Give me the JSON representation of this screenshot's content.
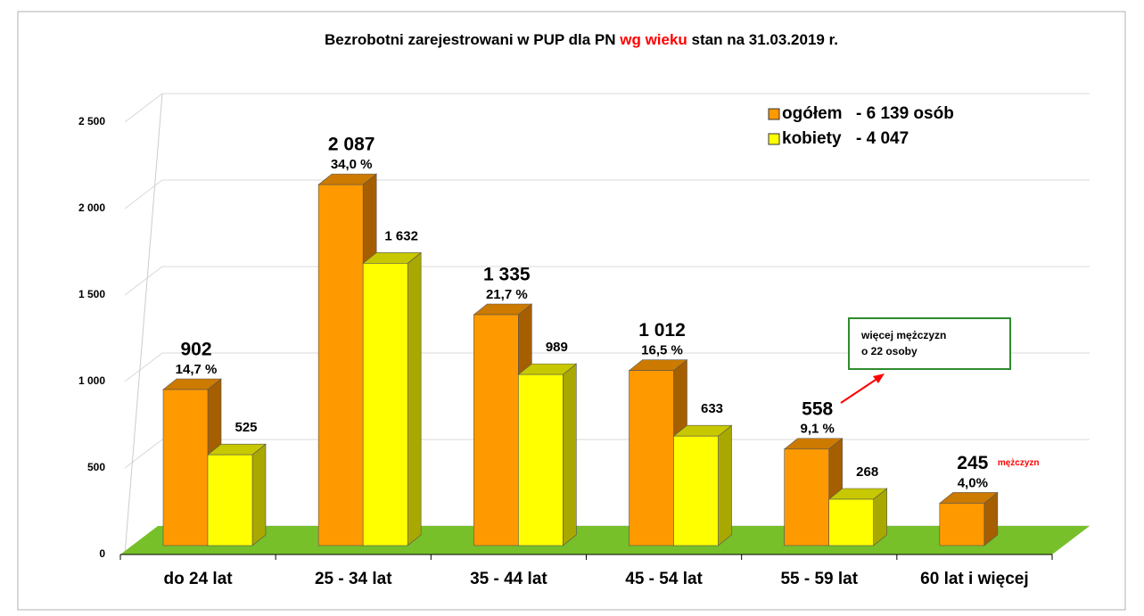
{
  "chart_data": {
    "type": "bar3d",
    "title_parts": [
      "Bezrobotni zarejestrowani  w PUP dla PN ",
      "wg wieku",
      " stan na 31.03.2019 r."
    ],
    "title_colors": [
      "#000000",
      "#ff0000",
      "#000000"
    ],
    "categories": [
      "do 24 lat",
      "25 - 34 lat",
      "35 - 44 lat",
      "45 - 54 lat",
      "55 - 59 lat",
      "60 lat i więcej"
    ],
    "series": [
      {
        "name": "ogółem",
        "color": "#ff9900",
        "top": "#cc7a00",
        "side": "#a65f00",
        "values": [
          902,
          2087,
          1335,
          1012,
          558,
          245
        ],
        "value_labels": [
          "902",
          "2 087",
          "1 335",
          "1 012",
          "558",
          "245"
        ],
        "shares": [
          14.7,
          34.0,
          21.7,
          16.5,
          9.1,
          4.0
        ],
        "share_labels": [
          "14,7 %",
          "34,0 %",
          "21,7 %",
          "16,5 %",
          "9,1 %",
          "4,0%"
        ],
        "total": 6139,
        "total_label": "- 6 139 osób"
      },
      {
        "name": "kobiety",
        "color": "#ffff00",
        "top": "#c8c800",
        "side": "#a8a800",
        "values": [
          525,
          1632,
          989,
          633,
          268,
          null
        ],
        "value_labels": [
          "525",
          "1 632",
          "989",
          "633",
          "268",
          null
        ],
        "total": 4047,
        "total_label": "-  4 047"
      }
    ],
    "ylim": [
      0,
      2500
    ],
    "yticks": [
      0,
      500,
      {
        "value": 1000,
        "label": "1 000"
      },
      {
        "value": 1500,
        "label": "1 500"
      },
      {
        "value": 2000,
        "label": "2 000"
      },
      {
        "value": 2500,
        "label": "2 500"
      }
    ],
    "grid": true,
    "annotations": [
      {
        "text": "mężczyzn"
      },
      {
        "lines": [
          "więcej mężczyzn",
          "o 22 osoby"
        ]
      }
    ]
  }
}
